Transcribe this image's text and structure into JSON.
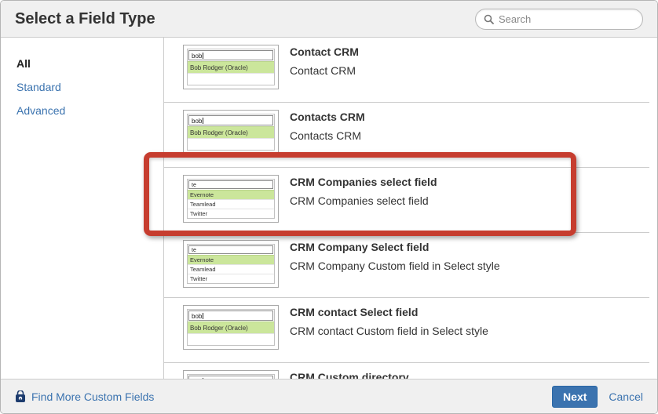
{
  "dialog": {
    "title": "Select a Field Type",
    "search_placeholder": "Search"
  },
  "sidebar": {
    "items": [
      {
        "label": "All",
        "selected": true
      },
      {
        "label": "Standard",
        "selected": false
      },
      {
        "label": "Advanced",
        "selected": false
      }
    ]
  },
  "field_types": [
    {
      "title": "Contact CRM",
      "description": "Contact CRM",
      "thumbnail": "contact",
      "highlighted": false
    },
    {
      "title": "Contacts CRM",
      "description": "Contacts CRM",
      "thumbnail": "contact",
      "highlighted": false
    },
    {
      "title": "CRM Companies select field",
      "description": "CRM Companies select field",
      "thumbnail": "company",
      "highlighted": true
    },
    {
      "title": "CRM Company Select field",
      "description": "CRM Company Custom field in Select style",
      "thumbnail": "company",
      "highlighted": false
    },
    {
      "title": "CRM contact Select field",
      "description": "CRM contact Custom field in Select style",
      "thumbnail": "contact",
      "highlighted": false
    },
    {
      "title": "CRM Custom directory",
      "description": "",
      "thumbnail": "contact",
      "highlighted": false
    }
  ],
  "thumbnails": {
    "contact": {
      "input_text": "bob",
      "caret": true,
      "rows": [
        {
          "label": "Bob Rodger (Oracle)",
          "highlighted": true
        },
        {
          "label": "",
          "highlighted": false
        }
      ]
    },
    "company": {
      "input_text": "te",
      "caret": false,
      "rows": [
        {
          "label": "Evernote",
          "highlighted": true
        },
        {
          "label": "Teamlead",
          "highlighted": false
        },
        {
          "label": "Twitter",
          "highlighted": false
        }
      ]
    }
  },
  "footer": {
    "find_more_label": "Find More Custom Fields",
    "next_label": "Next",
    "cancel_label": "Cancel"
  },
  "colors": {
    "accent": "#3b73af",
    "annotation_red": "#c63d2f",
    "highlight_green": "#cbe69b",
    "header_bg": "#f0f0f0",
    "footer_bg": "#f0f0f0",
    "divider": "#cccccc"
  }
}
